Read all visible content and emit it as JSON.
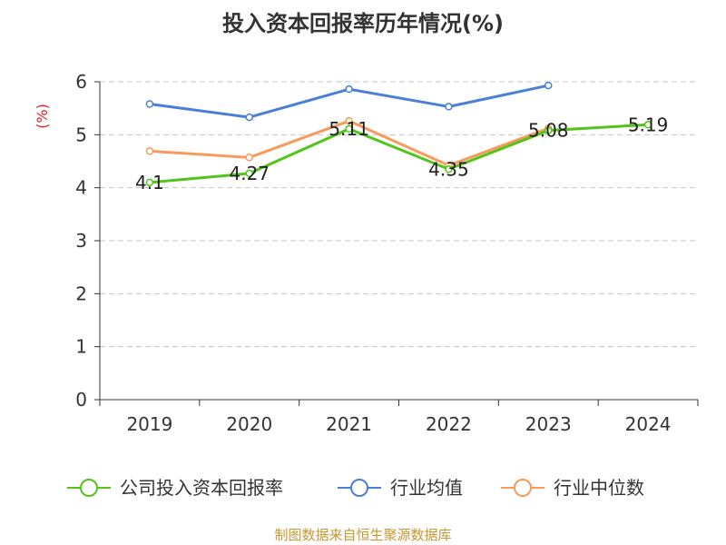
{
  "chart_data": {
    "type": "line",
    "title": "投入资本回报率历年情况(%)",
    "ylabel": "(%)",
    "xlabel": "",
    "categories": [
      "2019",
      "2020",
      "2021",
      "2022",
      "2023",
      "2024"
    ],
    "y_ticks": [
      "0",
      "1",
      "2",
      "3",
      "4",
      "5",
      "6"
    ],
    "ylim": [
      0,
      6
    ],
    "grid": true,
    "legend_position": "bottom",
    "series": [
      {
        "name": "公司投入资本回报率",
        "color": "#52c41a",
        "values": [
          4.1,
          4.27,
          5.11,
          4.35,
          5.08,
          5.19
        ],
        "labels": [
          "4.1",
          "4.27",
          "5.11",
          "4.35",
          "5.08",
          "5.19"
        ]
      },
      {
        "name": "行业均值",
        "color": "#4a7fd8",
        "values": [
          5.58,
          5.33,
          5.86,
          5.53,
          5.93,
          null
        ]
      },
      {
        "name": "行业中位数",
        "color": "#f89a5b",
        "values": [
          4.69,
          4.57,
          5.26,
          4.42,
          5.12,
          null
        ]
      }
    ]
  },
  "source_note": "制图数据来自恒生聚源数据库"
}
